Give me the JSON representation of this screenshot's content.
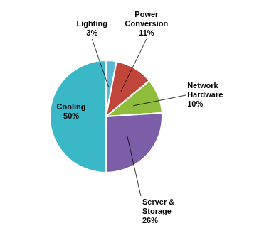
{
  "chart_data": {
    "type": "pie",
    "categories": [
      "Lighting",
      "Power\nConversion",
      "Network\nHardware",
      "Server &\nStorage",
      "Cooling"
    ],
    "values": [
      3,
      11,
      10,
      26,
      50
    ],
    "value_labels": [
      "3%",
      "11%",
      "10%",
      "26%",
      "50%"
    ],
    "colors": [
      "#5bb8d4",
      "#c0453a",
      "#8fbc3a",
      "#7b5ea7",
      "#3ab8c8"
    ],
    "data_labels": true
  }
}
